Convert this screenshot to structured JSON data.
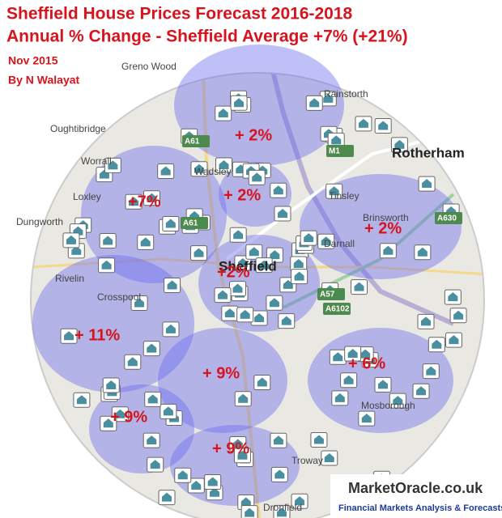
{
  "header": {
    "title": "Sheffield House Prices Forecast 2016-2018",
    "subtitle": "Annual % Change - Sheffield Average +7% (+21%)",
    "date": "Nov 2015",
    "author": "By N Walayat"
  },
  "regions": [
    {
      "label": "+ 2%"
    },
    {
      "label": "+ 2%"
    },
    {
      "label": "+ 2%"
    },
    {
      "label": "+7%"
    },
    {
      "label": "+2%"
    },
    {
      "label": "+ 11%"
    },
    {
      "label": "+ 9%"
    },
    {
      "label": "+ 6%"
    },
    {
      "label": "+ 9%"
    },
    {
      "label": "+ 9%"
    }
  ],
  "places": [
    {
      "name": "Greno Wood"
    },
    {
      "name": "Rainstorth"
    },
    {
      "name": "Oughtibridge"
    },
    {
      "name": "Worrall"
    },
    {
      "name": "Rotherham"
    },
    {
      "name": "Wadsley"
    },
    {
      "name": "Loxley"
    },
    {
      "name": "Dungworth"
    },
    {
      "name": "Tinsley"
    },
    {
      "name": "Brinsworth"
    },
    {
      "name": "Sheffield"
    },
    {
      "name": "Darnall"
    },
    {
      "name": "Rivelin"
    },
    {
      "name": "Crosspool"
    },
    {
      "name": "Mosborough"
    },
    {
      "name": "Troway"
    },
    {
      "name": "Dronfield"
    }
  ],
  "roads": [
    {
      "name": "A61"
    },
    {
      "name": "A61"
    },
    {
      "name": "M1"
    },
    {
      "name": "A630"
    },
    {
      "name": "A57"
    },
    {
      "name": "A6102"
    }
  ],
  "logo": {
    "name": "MarketOracle.co.uk",
    "tagline": "Financial Markets Analysis & Forecasts"
  }
}
